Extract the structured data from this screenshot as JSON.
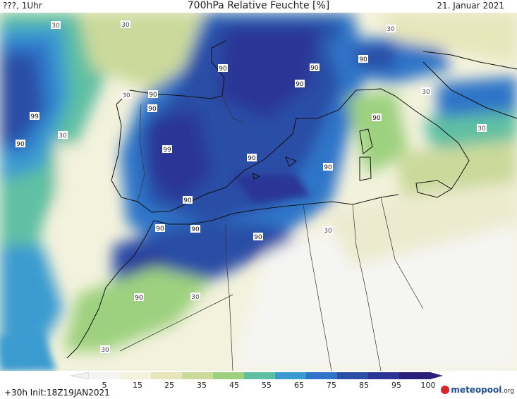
{
  "header": {
    "location": "???, 1Uhr",
    "title": "700hPa Relative Feuchte [%]",
    "date": "21. Januar 2021"
  },
  "footer": {
    "run_info": "+30h Init:18Z19JAN2021",
    "logo_text": "meteopool",
    "logo_suffix": ".org"
  },
  "legend": {
    "ticks": [
      "5",
      "15",
      "25",
      "35",
      "45",
      "55",
      "65",
      "75",
      "85",
      "95",
      "100"
    ],
    "colors": [
      "#f4f4f2",
      "#f3f2dc",
      "#e7e6bb",
      "#cbd99b",
      "#9dd17f",
      "#5ec0a3",
      "#3b9bd0",
      "#2f74c8",
      "#2c4ea6",
      "#2b3595",
      "#2a1f79"
    ]
  },
  "contour_labels": [
    {
      "text": "30"
    },
    {
      "text": "30"
    },
    {
      "text": "30"
    },
    {
      "text": "30"
    },
    {
      "text": "30"
    },
    {
      "text": "30"
    },
    {
      "text": "30"
    },
    {
      "text": "30"
    },
    {
      "text": "30"
    },
    {
      "text": "30"
    },
    {
      "text": "90"
    },
    {
      "text": "90"
    },
    {
      "text": "90"
    },
    {
      "text": "90"
    },
    {
      "text": "90"
    },
    {
      "text": "90"
    },
    {
      "text": "90"
    },
    {
      "text": "90"
    },
    {
      "text": "90"
    },
    {
      "text": "90"
    },
    {
      "text": "90"
    },
    {
      "text": "90"
    },
    {
      "text": "90"
    },
    {
      "text": "90"
    },
    {
      "text": "90"
    },
    {
      "text": "99"
    },
    {
      "text": "99"
    }
  ]
}
